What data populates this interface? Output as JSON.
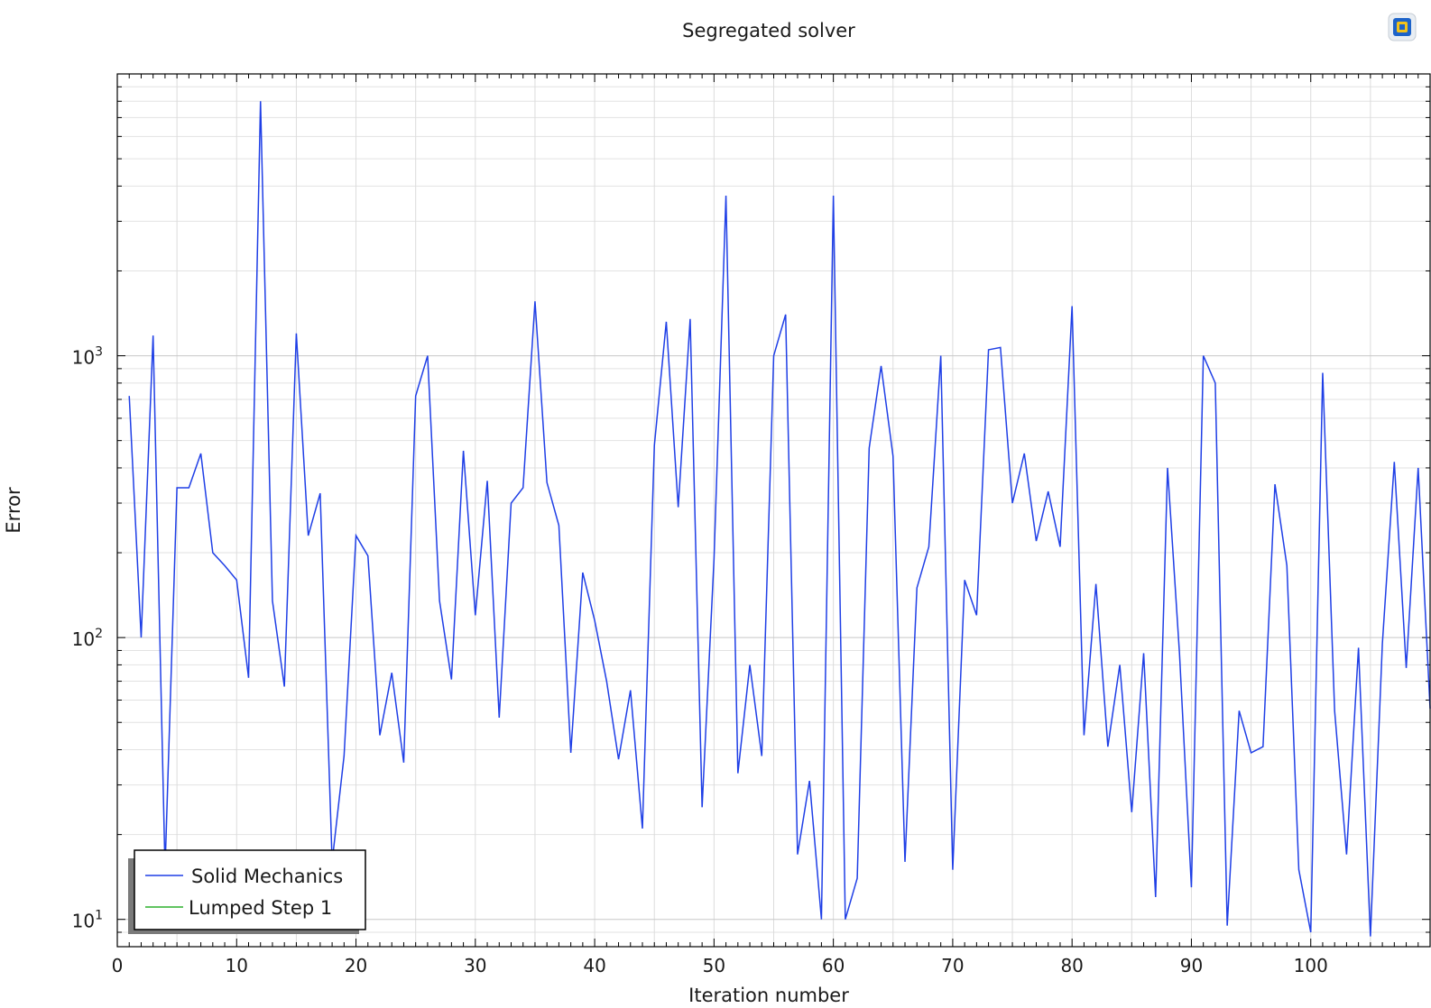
{
  "chart_data": {
    "type": "line",
    "title": "Segregated solver",
    "xlabel": "Iteration number",
    "ylabel": "Error",
    "xlim": [
      0,
      110
    ],
    "ylim": [
      8,
      10000
    ],
    "yscale": "log",
    "grid": true,
    "legend_position": "bottom-left",
    "x_ticks": [
      0,
      10,
      20,
      30,
      40,
      50,
      60,
      70,
      80,
      90,
      100
    ],
    "y_ticks": [
      {
        "value": 10,
        "base": "10",
        "exp": "1"
      },
      {
        "value": 100,
        "base": "10",
        "exp": "2"
      },
      {
        "value": 1000,
        "base": "10",
        "exp": "3"
      }
    ],
    "series": [
      {
        "name": "Solid Mechanics",
        "color": "#1f3fe6",
        "x": [
          1,
          2,
          3,
          4,
          5,
          6,
          7,
          8,
          9,
          10,
          11,
          12,
          13,
          14,
          15,
          16,
          17,
          18,
          19,
          20,
          21,
          22,
          23,
          24,
          25,
          26,
          27,
          28,
          29,
          30,
          31,
          32,
          33,
          34,
          35,
          36,
          37,
          38,
          39,
          40,
          41,
          42,
          43,
          44,
          45,
          46,
          47,
          48,
          49,
          50,
          51,
          52,
          53,
          54,
          55,
          56,
          57,
          58,
          59,
          60,
          61,
          62,
          63,
          64,
          65,
          66,
          67,
          68,
          69,
          70,
          71,
          72,
          73,
          74,
          75,
          76,
          77,
          78,
          79,
          80,
          81,
          82,
          83,
          84,
          85,
          86,
          87,
          88,
          89,
          90,
          91,
          92,
          93,
          94,
          95,
          96,
          97,
          98,
          99,
          100,
          101,
          102,
          103,
          104,
          105,
          106,
          107,
          108,
          109,
          110
        ],
        "values": [
          720,
          100,
          1180,
          15,
          340,
          340,
          450,
          200,
          180,
          160,
          72,
          8000,
          135,
          67,
          1200,
          230,
          325,
          16,
          38,
          230,
          195,
          45,
          75,
          36,
          720,
          1000,
          135,
          71,
          460,
          120,
          360,
          52,
          300,
          340,
          1560,
          355,
          250,
          39,
          170,
          115,
          70,
          37,
          65,
          21,
          480,
          1320,
          290,
          1350,
          25,
          190,
          3700,
          33,
          80,
          38,
          1000,
          1400,
          17,
          31,
          10,
          3700,
          10,
          14,
          470,
          920,
          440,
          16,
          150,
          210,
          1000,
          15,
          160,
          120,
          1050,
          1070,
          300,
          450,
          220,
          330,
          210,
          1500,
          45,
          155,
          41,
          80,
          24,
          88,
          12,
          400,
          88,
          13,
          1000,
          800,
          9.5,
          55,
          39,
          41,
          350,
          180,
          15,
          9,
          870,
          55,
          17,
          92,
          8.7,
          95,
          420,
          78,
          400,
          56
        ]
      },
      {
        "name": "Lumped Step 1",
        "color": "#2db02d",
        "x": [],
        "values": []
      }
    ]
  },
  "icon": {
    "name": "comsol-logo-icon"
  }
}
